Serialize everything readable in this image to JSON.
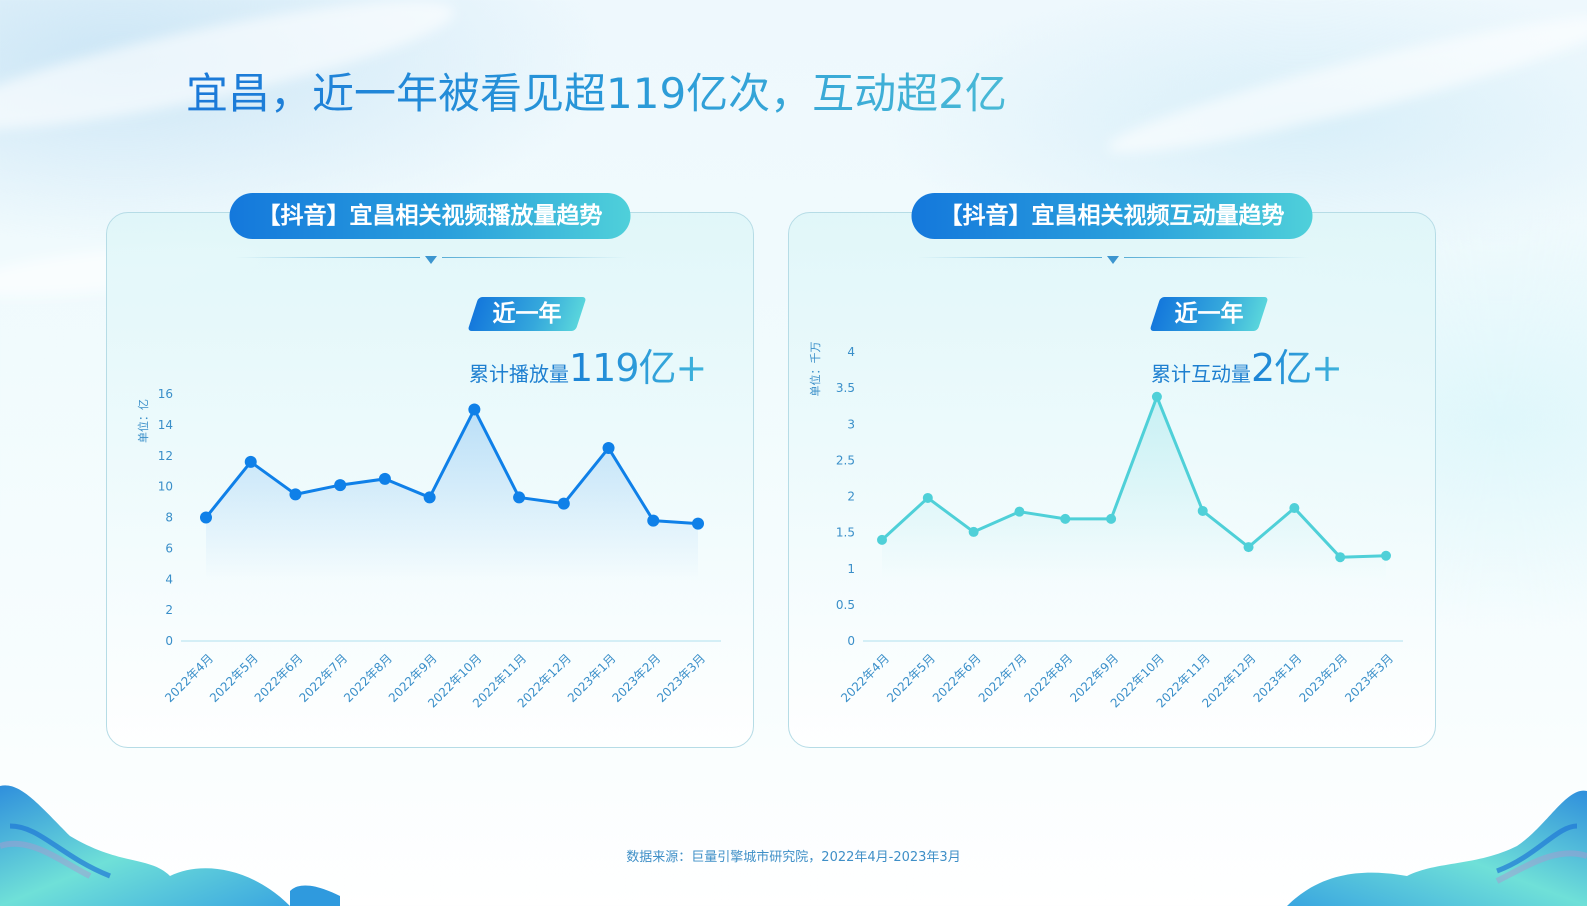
{
  "page": {
    "title": "宜昌，近一年被看见超119亿次，互动超2亿",
    "footer_note": "数据来源：巨量引擎城市研究院，2022年4月-2023年3月"
  },
  "panels": [
    {
      "title": "【抖音】宜昌相关视频播放量趋势",
      "badge": "近一年",
      "kpi_label": "累计播放量",
      "kpi_value": "119亿+",
      "y_unit_label": "单位：亿"
    },
    {
      "title": "【抖音】宜昌相关视频互动量趋势",
      "badge": "近一年",
      "kpi_label": "累计互动量",
      "kpi_value": "2亿+",
      "y_unit_label": "单位：千万"
    }
  ],
  "colors": {
    "title_gradient_start": "#1a78d8",
    "title_gradient_end": "#49b9d6",
    "views_line": "#0f80e8",
    "interactions_line": "#4fd0d8",
    "axis_text": "#3a8fc9",
    "axis_line": "#bfe6f2"
  },
  "chart_data": [
    {
      "type": "line",
      "title": "【抖音】宜昌相关视频播放量趋势",
      "xlabel": "",
      "ylabel": "单位：亿",
      "categories": [
        "2022年4月",
        "2022年5月",
        "2022年6月",
        "2022年7月",
        "2022年8月",
        "2022年9月",
        "2022年10月",
        "2022年11月",
        "2022年12月",
        "2023年1月",
        "2023年2月",
        "2023年3月"
      ],
      "values": [
        8.0,
        11.6,
        9.5,
        10.1,
        10.5,
        9.3,
        15.0,
        9.3,
        8.9,
        12.5,
        7.8,
        7.6
      ],
      "ylim": [
        0,
        16
      ],
      "yticks": [
        0,
        2,
        4,
        6,
        8,
        10,
        12,
        14,
        16
      ],
      "grid": false,
      "legend": "none",
      "annotation": "近一年 累计播放量119亿+"
    },
    {
      "type": "line",
      "title": "【抖音】宜昌相关视频互动量趋势",
      "xlabel": "",
      "ylabel": "单位：千万",
      "categories": [
        "2022年4月",
        "2022年5月",
        "2022年6月",
        "2022年7月",
        "2022年8月",
        "2022年9月",
        "2022年10月",
        "2022年11月",
        "2022年12月",
        "2023年1月",
        "2023年2月",
        "2023年3月"
      ],
      "values": [
        1.4,
        1.98,
        1.51,
        1.79,
        1.69,
        1.69,
        3.38,
        1.8,
        1.3,
        1.84,
        1.16,
        1.18
      ],
      "ylim": [
        0,
        4
      ],
      "yticks": [
        0,
        0.5,
        1,
        1.5,
        2,
        2.5,
        3,
        3.5,
        4
      ],
      "grid": false,
      "legend": "none",
      "annotation": "近一年 累计互动量2亿+"
    }
  ]
}
